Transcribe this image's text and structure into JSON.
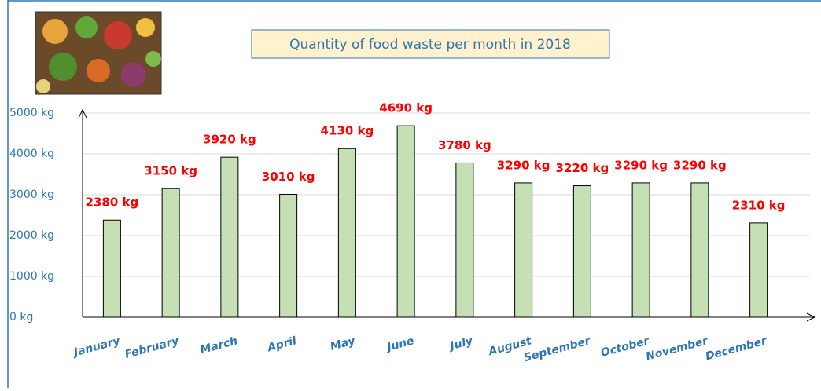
{
  "chart_data": {
    "type": "bar",
    "title": "Quantity of food waste per month in 2018",
    "categories": [
      "January",
      "February",
      "March",
      "April",
      "May",
      "June",
      "July",
      "August",
      "September",
      "October",
      "November",
      "December"
    ],
    "values": [
      2380,
      3150,
      3920,
      3010,
      4130,
      4690,
      3780,
      3290,
      3220,
      3290,
      3290,
      2310
    ],
    "value_labels": [
      "2380 kg",
      "3150 kg",
      "3920 kg",
      "3010 kg",
      "4130 kg",
      "4690 kg",
      "3780 kg",
      "3290 kg",
      "3220 kg",
      "3290 kg",
      "3290 kg",
      "2310 kg"
    ],
    "color": "#c5e0b4",
    "ylim": [
      0,
      5000
    ],
    "yticks": [
      {
        "value": 0,
        "label": "0 kg"
      },
      {
        "value": 1000,
        "label": "1000 kg"
      },
      {
        "value": 2000,
        "label": "2000 kg"
      },
      {
        "value": 3000,
        "label": "3000 kg"
      },
      {
        "value": 4000,
        "label": "4000 kg"
      },
      {
        "value": 5000,
        "label": "5000 kg"
      }
    ],
    "grid": true
  }
}
